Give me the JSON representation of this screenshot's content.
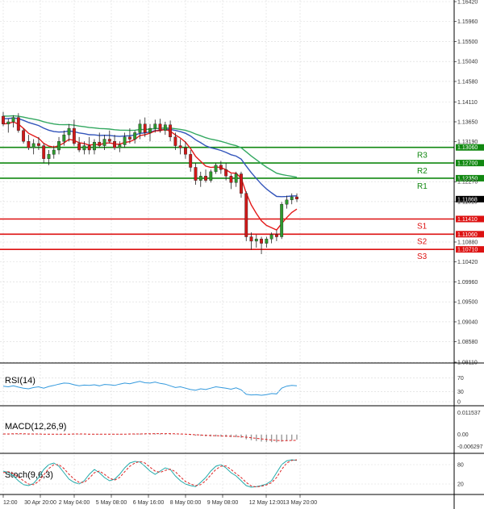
{
  "chart_data": {
    "type": "candlestick",
    "colors": {
      "bull": "#2e9a2e",
      "bear": "#d01818",
      "ma_fast": "#e41a1a",
      "ma_mid": "#3355bb",
      "ma_slow": "#33a860",
      "resistance": "#118811",
      "support": "#dd1111",
      "grid": "#d9d9d9",
      "rsi": "#3399dd",
      "stoch_main": "#22aaaa",
      "stoch_signal": "#dd2222",
      "macd_hist": "#999999",
      "macd_signal": "#dd2222"
    },
    "y_range": [
      1.0811,
      1.1642
    ],
    "y_ticks": [
      "1.16420",
      "1.15960",
      "1.15500",
      "1.15040",
      "1.14580",
      "1.14110",
      "1.13650",
      "1.13190",
      "1.12270",
      "1.11810",
      "1.10880",
      "1.10420",
      "1.09960",
      "1.09500",
      "1.09040",
      "1.08580",
      "1.08110"
    ],
    "x_labels": [
      "12:00",
      "30 Apr 20:00",
      "2 May 04:00",
      "5 May 08:00",
      "6 May 16:00",
      "8 May 00:00",
      "9 May 08:00",
      "12 May 12:00",
      "13 May 20:00"
    ],
    "current_price": "1.11868",
    "levels": [
      {
        "name": "R3",
        "value": 1.1306,
        "label": "1.13060",
        "type": "resistance"
      },
      {
        "name": "R2",
        "value": 1.127,
        "label": "1.12700",
        "type": "resistance"
      },
      {
        "name": "R1",
        "value": 1.1235,
        "label": "1.12350",
        "type": "resistance"
      },
      {
        "name": "S1",
        "value": 1.1141,
        "label": "1.11410",
        "type": "support"
      },
      {
        "name": "S2",
        "value": 1.1106,
        "label": "1.11060",
        "type": "support"
      },
      {
        "name": "S3",
        "value": 1.1071,
        "label": "1.10710",
        "type": "support"
      }
    ],
    "candles": [
      [
        1.1378,
        1.1388,
        1.1355,
        1.136
      ],
      [
        1.136,
        1.1372,
        1.134,
        1.1365
      ],
      [
        1.1365,
        1.138,
        1.1352,
        1.1375
      ],
      [
        1.1375,
        1.1385,
        1.134,
        1.1345
      ],
      [
        1.1345,
        1.135,
        1.1315,
        1.132
      ],
      [
        1.132,
        1.1335,
        1.13,
        1.1305
      ],
      [
        1.1305,
        1.1325,
        1.129,
        1.1315
      ],
      [
        1.1315,
        1.133,
        1.13,
        1.131
      ],
      [
        1.131,
        1.1315,
        1.127,
        1.128
      ],
      [
        1.128,
        1.13,
        1.1265,
        1.129
      ],
      [
        1.129,
        1.131,
        1.128,
        1.13
      ],
      [
        1.13,
        1.133,
        1.129,
        1.132
      ],
      [
        1.132,
        1.1345,
        1.131,
        1.1335
      ],
      [
        1.1335,
        1.136,
        1.132,
        1.135
      ],
      [
        1.135,
        1.137,
        1.131,
        1.1315
      ],
      [
        1.1315,
        1.133,
        1.1295,
        1.13
      ],
      [
        1.13,
        1.132,
        1.129,
        1.131
      ],
      [
        1.131,
        1.133,
        1.129,
        1.13
      ],
      [
        1.13,
        1.1325,
        1.129,
        1.1318
      ],
      [
        1.1318,
        1.134,
        1.1305,
        1.131
      ],
      [
        1.131,
        1.1335,
        1.13,
        1.1325
      ],
      [
        1.1325,
        1.1345,
        1.1315,
        1.132
      ],
      [
        1.132,
        1.1335,
        1.13,
        1.1305
      ],
      [
        1.1305,
        1.132,
        1.1295,
        1.1312
      ],
      [
        1.1312,
        1.134,
        1.1305,
        1.133
      ],
      [
        1.133,
        1.135,
        1.1315,
        1.1325
      ],
      [
        1.1325,
        1.1345,
        1.1315,
        1.134
      ],
      [
        1.134,
        1.137,
        1.1325,
        1.136
      ],
      [
        1.136,
        1.1375,
        1.133,
        1.134
      ],
      [
        1.134,
        1.136,
        1.132,
        1.135
      ],
      [
        1.135,
        1.137,
        1.134,
        1.136
      ],
      [
        1.136,
        1.1372,
        1.134,
        1.1345
      ],
      [
        1.1345,
        1.1365,
        1.1335,
        1.1358
      ],
      [
        1.1358,
        1.1368,
        1.132,
        1.133
      ],
      [
        1.133,
        1.134,
        1.13,
        1.131
      ],
      [
        1.131,
        1.1325,
        1.129,
        1.1305
      ],
      [
        1.1305,
        1.132,
        1.128,
        1.129
      ],
      [
        1.129,
        1.13,
        1.125,
        1.126
      ],
      [
        1.126,
        1.127,
        1.122,
        1.123
      ],
      [
        1.123,
        1.125,
        1.1215,
        1.124
      ],
      [
        1.124,
        1.1255,
        1.1225,
        1.123
      ],
      [
        1.123,
        1.1255,
        1.1225,
        1.125
      ],
      [
        1.125,
        1.127,
        1.1245,
        1.1265
      ],
      [
        1.1265,
        1.1275,
        1.1245,
        1.1255
      ],
      [
        1.1255,
        1.127,
        1.123,
        1.124
      ],
      [
        1.124,
        1.1245,
        1.121,
        1.1225
      ],
      [
        1.1225,
        1.125,
        1.1215,
        1.1245
      ],
      [
        1.1245,
        1.125,
        1.119,
        1.12
      ],
      [
        1.12,
        1.1205,
        1.109,
        1.11
      ],
      [
        1.11,
        1.111,
        1.107,
        1.109
      ],
      [
        1.109,
        1.1105,
        1.1075,
        1.1095
      ],
      [
        1.1095,
        1.11,
        1.106,
        1.1085
      ],
      [
        1.1085,
        1.11,
        1.1075,
        1.1095
      ],
      [
        1.1095,
        1.111,
        1.1085,
        1.1105
      ],
      [
        1.1105,
        1.1115,
        1.109,
        1.11
      ],
      [
        1.11,
        1.118,
        1.1095,
        1.1175
      ],
      [
        1.1175,
        1.1195,
        1.1165,
        1.1185
      ],
      [
        1.1185,
        1.12,
        1.1175,
        1.1192
      ],
      [
        1.1192,
        1.12,
        1.118,
        1.1187
      ]
    ],
    "rsi": {
      "title": "RSI(14)",
      "y_range": [
        0,
        100
      ],
      "ticks": [
        "70",
        "30",
        "0"
      ],
      "values": [
        46,
        44,
        47,
        43,
        40,
        38,
        42,
        44,
        40,
        45,
        48,
        52,
        55,
        54,
        50,
        47,
        49,
        48,
        50,
        47,
        51,
        50,
        48,
        52,
        55,
        53,
        57,
        60,
        56,
        55,
        58,
        54,
        52,
        47,
        42,
        44,
        40,
        36,
        34,
        38,
        36,
        40,
        44,
        42,
        40,
        37,
        41,
        35,
        22,
        20,
        21,
        19,
        21,
        24,
        23,
        40,
        46,
        48,
        47
      ]
    },
    "macd": {
      "title": "MACD(12,26,9)",
      "ticks": [
        "0.011537",
        "0.00",
        "-0.006297"
      ],
      "y_range": [
        -0.0078,
        0.0127
      ],
      "hist": [
        0.0004,
        0.0004,
        0.0005,
        0.0004,
        0.0003,
        0.0002,
        0.0002,
        0.0002,
        0.0001,
        0.0001,
        0.0001,
        0.0002,
        0.0003,
        0.0003,
        0.0003,
        0.0002,
        0.0002,
        0.0002,
        0.0002,
        0.0002,
        0.0002,
        0.0002,
        0.0002,
        0.0002,
        0.0003,
        0.0003,
        0.0004,
        0.0005,
        0.0005,
        0.0005,
        0.0006,
        0.0005,
        0.0005,
        0.0004,
        0.0002,
        0.0001,
        0.0,
        -0.0003,
        -0.0006,
        -0.0007,
        -0.0009,
        -0.001,
        -0.001,
        -0.0011,
        -0.0012,
        -0.0014,
        -0.0014,
        -0.0017,
        -0.0025,
        -0.003,
        -0.0034,
        -0.0037,
        -0.0039,
        -0.004,
        -0.0041,
        -0.0038,
        -0.0034,
        -0.003,
        -0.0027
      ],
      "signal": [
        0.0003,
        0.0003,
        0.0004,
        0.0004,
        0.0004,
        0.0003,
        0.0003,
        0.0003,
        0.0002,
        0.0002,
        0.0002,
        0.0002,
        0.0002,
        0.0002,
        0.0003,
        0.0003,
        0.0003,
        0.0002,
        0.0002,
        0.0002,
        0.0002,
        0.0002,
        0.0002,
        0.0002,
        0.0002,
        0.0003,
        0.0003,
        0.0003,
        0.0004,
        0.0004,
        0.0005,
        0.0005,
        0.0005,
        0.0005,
        0.0004,
        0.0003,
        0.0002,
        0.0001,
        -0.0001,
        -0.0002,
        -0.0004,
        -0.0005,
        -0.0006,
        -0.0007,
        -0.0008,
        -0.0009,
        -0.001,
        -0.0011,
        -0.0014,
        -0.0017,
        -0.002,
        -0.0023,
        -0.0026,
        -0.0029,
        -0.0031,
        -0.0032,
        -0.0032,
        -0.0031,
        -0.003
      ]
    },
    "stoch": {
      "title": "Stoch(9,6,3)",
      "y_range": [
        0,
        100
      ],
      "ticks": [
        "80",
        "20"
      ],
      "main": [
        60,
        55,
        45,
        30,
        18,
        15,
        22,
        40,
        65,
        80,
        85,
        75,
        55,
        35,
        25,
        20,
        30,
        50,
        65,
        55,
        40,
        30,
        35,
        50,
        70,
        85,
        90,
        88,
        75,
        60,
        50,
        60,
        70,
        65,
        45,
        30,
        20,
        15,
        12,
        25,
        40,
        60,
        75,
        80,
        70,
        55,
        45,
        30,
        15,
        10,
        12,
        15,
        20,
        30,
        55,
        80,
        92,
        95,
        93
      ],
      "signal": [
        55,
        58,
        52,
        42,
        30,
        20,
        18,
        28,
        48,
        68,
        80,
        80,
        68,
        50,
        35,
        25,
        25,
        38,
        55,
        60,
        50,
        38,
        32,
        40,
        58,
        75,
        85,
        90,
        85,
        72,
        60,
        56,
        62,
        66,
        58,
        42,
        28,
        20,
        15,
        18,
        30,
        48,
        65,
        75,
        76,
        65,
        52,
        40,
        25,
        14,
        11,
        13,
        17,
        24,
        40,
        65,
        85,
        93,
        95
      ]
    }
  }
}
